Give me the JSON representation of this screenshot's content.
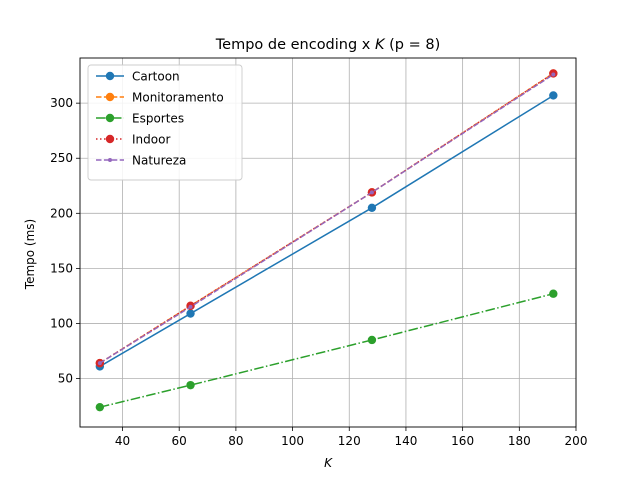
{
  "chart_data": {
    "type": "line",
    "title_prefix": "Tempo de encoding x ",
    "title_var": "K",
    "title_params": " (p = 8)",
    "xlabel": "K",
    "ylabel": "Tempo (ms)",
    "xlim": [
      25,
      200
    ],
    "ylim": [
      6,
      341
    ],
    "xticks": [
      40,
      60,
      80,
      100,
      120,
      140,
      160,
      180,
      200
    ],
    "yticks": [
      50,
      100,
      150,
      200,
      250,
      300
    ],
    "grid": true,
    "legend_position": "top-left",
    "x": [
      32,
      64,
      128,
      192
    ],
    "series": [
      {
        "name": "Cartoon",
        "values": [
          61,
          109,
          205,
          307
        ],
        "color": "#1f77b4",
        "dash": "solid",
        "marker": "circle"
      },
      {
        "name": "Monitoramento",
        "values": [
          64,
          116,
          219,
          327
        ],
        "color": "#ff7f0e",
        "dash": "dashed",
        "marker": "circle"
      },
      {
        "name": "Esportes",
        "values": [
          24,
          44,
          85,
          127
        ],
        "color": "#2ca02c",
        "dash": "dashdot",
        "marker": "circle"
      },
      {
        "name": "Indoor",
        "values": [
          64,
          116,
          219,
          327
        ],
        "color": "#d62728",
        "dash": "dotted",
        "marker": "circle"
      },
      {
        "name": "Natureza",
        "values": [
          64,
          115,
          219,
          326
        ],
        "color": "#9467bd",
        "dash": "dashed",
        "marker": "dot"
      }
    ]
  }
}
